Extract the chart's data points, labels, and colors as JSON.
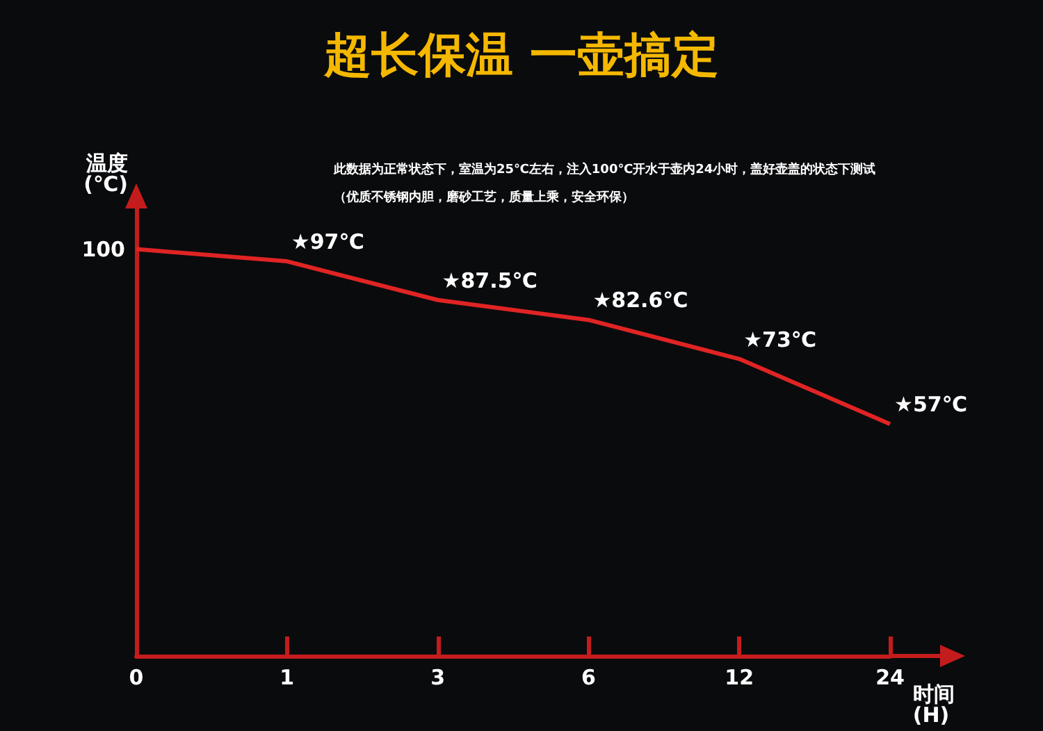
{
  "chart_data": {
    "type": "line",
    "title": "超长保温 一壶搞定",
    "xlabel": "时间\n(H)",
    "ylabel": "温度\n(℃)",
    "annotations": [
      "此数据为正常状态下，室温为25℃左右，注入100℃开水于壶内24小时，盖好壶盖的状态下测试",
      "（优质不锈钢内胆，磨砂工艺，质量上乘，安全环保）",
      {
        "text": "100",
        "x": "0",
        "y": 100
      }
    ],
    "categories": [
      "0",
      "1",
      "3",
      "6",
      "12",
      "24"
    ],
    "series": [
      {
        "color": "#e02424",
        "values": [
          100,
          97,
          87.5,
          82.6,
          73,
          57
        ],
        "value_labels": [
          null,
          "★97℃",
          "★87.5℃",
          "★82.6℃",
          "★73℃",
          "★57℃"
        ]
      }
    ],
    "ylim": [
      0,
      110
    ],
    "grid": false,
    "marker": "none",
    "line_style": "solid"
  }
}
